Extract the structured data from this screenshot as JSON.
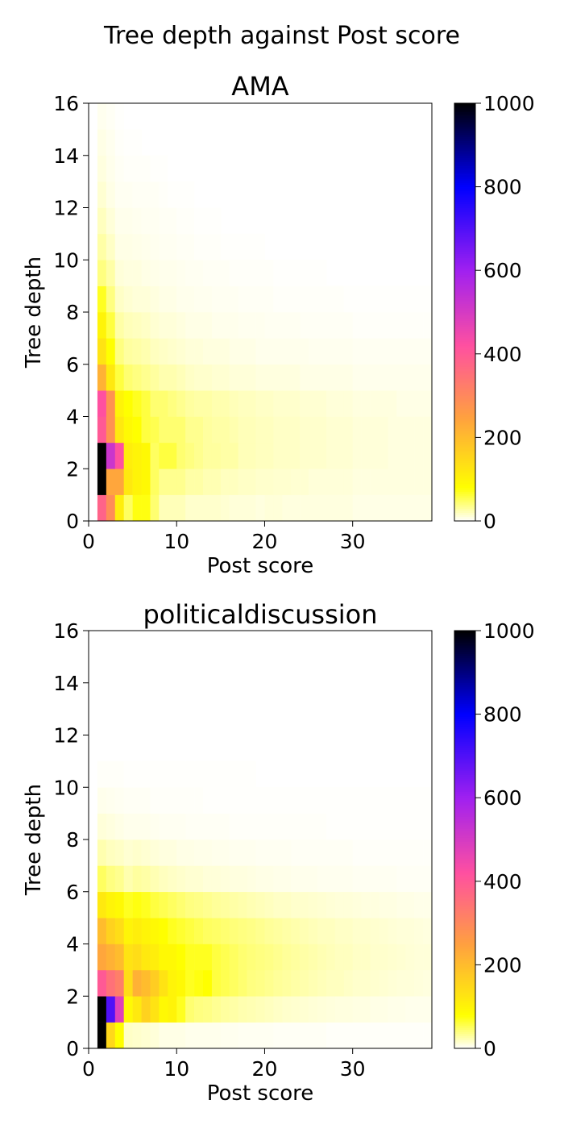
{
  "figure": {
    "suptitle": "Tree depth against Post score"
  },
  "colormap": {
    "stops": [
      "#ffffff",
      "#ffff00",
      "#ffa040",
      "#ff50a0",
      "#a020f0",
      "#0000ff",
      "#000000"
    ],
    "stop_positions": [
      0,
      0.08,
      0.25,
      0.42,
      0.6,
      0.8,
      1
    ]
  },
  "chart_data": [
    {
      "type": "heatmap",
      "title": "AMA",
      "xlabel": "Post score",
      "ylabel": "Tree depth",
      "xlim": [
        0,
        39
      ],
      "ylim": [
        0,
        16
      ],
      "xticks": [
        "0",
        "10",
        "20",
        "30"
      ],
      "yticks": [
        "0",
        "2",
        "4",
        "6",
        "8",
        "10",
        "12",
        "14",
        "16"
      ],
      "colorbar": {
        "min": 0,
        "max": 1000,
        "ticks": [
          "0",
          "200",
          "400",
          "600",
          "800",
          "1000"
        ]
      },
      "col_keys": [
        1,
        2,
        3,
        4,
        5,
        6,
        7,
        8,
        9,
        10,
        11,
        12,
        13,
        14,
        15,
        16,
        17,
        18,
        19,
        20,
        21,
        22,
        23,
        24,
        25,
        26,
        27,
        28,
        29,
        30,
        31,
        32,
        33,
        34,
        35,
        36,
        37,
        38
      ],
      "rows": [
        [
          380,
          290,
          110,
          50,
          75,
          75,
          45,
          22,
          22,
          22,
          16,
          16,
          16,
          16,
          14,
          12,
          12,
          12,
          10,
          12,
          12,
          10,
          10,
          10,
          10,
          10,
          10,
          10,
          10,
          8,
          8,
          8,
          8,
          8,
          8,
          8,
          8,
          8
        ],
        [
          1000,
          240,
          240,
          120,
          100,
          90,
          50,
          35,
          35,
          35,
          28,
          28,
          24,
          24,
          20,
          20,
          18,
          18,
          16,
          16,
          15,
          15,
          14,
          14,
          12,
          12,
          12,
          12,
          12,
          10,
          10,
          10,
          10,
          10,
          10,
          10,
          10,
          10
        ],
        [
          1000,
          520,
          420,
          110,
          100,
          90,
          50,
          60,
          60,
          45,
          40,
          35,
          30,
          30,
          28,
          28,
          22,
          22,
          20,
          20,
          18,
          18,
          18,
          16,
          16,
          16,
          14,
          14,
          14,
          12,
          12,
          12,
          12,
          10,
          10,
          10,
          10,
          10
        ],
        [
          400,
          280,
          120,
          90,
          80,
          60,
          55,
          45,
          45,
          45,
          35,
          35,
          30,
          28,
          28,
          25,
          22,
          22,
          20,
          20,
          18,
          18,
          18,
          16,
          16,
          16,
          14,
          14,
          14,
          12,
          12,
          12,
          12,
          10,
          10,
          10,
          10,
          10
        ],
        [
          420,
          280,
          100,
          80,
          70,
          60,
          45,
          45,
          40,
          35,
          30,
          28,
          28,
          25,
          25,
          22,
          20,
          20,
          18,
          18,
          16,
          16,
          16,
          14,
          14,
          14,
          12,
          12,
          12,
          10,
          10,
          10,
          10,
          10,
          8,
          8,
          8,
          8
        ],
        [
          220,
          120,
          60,
          45,
          40,
          35,
          30,
          25,
          25,
          22,
          18,
          16,
          16,
          14,
          14,
          12,
          12,
          12,
          10,
          10,
          10,
          10,
          10,
          8,
          8,
          8,
          8,
          8,
          8,
          6,
          6,
          6,
          6,
          6,
          6,
          6,
          6,
          6
        ],
        [
          130,
          80,
          40,
          30,
          28,
          25,
          20,
          18,
          16,
          14,
          12,
          12,
          10,
          10,
          10,
          8,
          8,
          8,
          6,
          6,
          6,
          6,
          6,
          6,
          5,
          5,
          5,
          5,
          5,
          4,
          4,
          4,
          4,
          4,
          4,
          4,
          4,
          4
        ],
        [
          100,
          60,
          28,
          22,
          20,
          18,
          14,
          12,
          12,
          10,
          8,
          8,
          8,
          6,
          6,
          6,
          5,
          5,
          5,
          4,
          4,
          4,
          4,
          3,
          3,
          3,
          3,
          3,
          3,
          2,
          2,
          2,
          2,
          2,
          2,
          2,
          2,
          2
        ],
        [
          70,
          40,
          18,
          14,
          12,
          12,
          10,
          8,
          8,
          6,
          6,
          5,
          5,
          4,
          4,
          4,
          3,
          3,
          3,
          3,
          2,
          2,
          2,
          2,
          2,
          2,
          2,
          2,
          1,
          1,
          1,
          1,
          1,
          1,
          1,
          1,
          1,
          1
        ],
        [
          40,
          28,
          12,
          10,
          10,
          8,
          7,
          6,
          6,
          5,
          4,
          4,
          3,
          3,
          3,
          2,
          2,
          2,
          2,
          2,
          1,
          1,
          1,
          1,
          1,
          1,
          0,
          0,
          0,
          0,
          0,
          0,
          0,
          0,
          0,
          0,
          0,
          0
        ],
        [
          28,
          18,
          8,
          8,
          7,
          6,
          5,
          4,
          4,
          3,
          3,
          2,
          2,
          2,
          1,
          1,
          1,
          1,
          1,
          0,
          0,
          0,
          0,
          0,
          0,
          0,
          0,
          0,
          0,
          0,
          0,
          0,
          0,
          0,
          0,
          0,
          0,
          0
        ],
        [
          20,
          12,
          6,
          6,
          5,
          4,
          4,
          3,
          3,
          2,
          2,
          1,
          1,
          1,
          0,
          0,
          0,
          0,
          0,
          0,
          0,
          0,
          0,
          0,
          0,
          0,
          0,
          0,
          0,
          0,
          0,
          0,
          0,
          0,
          0,
          0,
          0,
          0
        ],
        [
          14,
          8,
          4,
          4,
          3,
          3,
          3,
          2,
          1,
          1,
          1,
          0,
          0,
          0,
          0,
          0,
          0,
          0,
          0,
          0,
          0,
          0,
          0,
          0,
          0,
          0,
          0,
          0,
          0,
          0,
          0,
          0,
          0,
          0,
          0,
          0,
          0,
          0
        ],
        [
          10,
          6,
          3,
          2,
          2,
          2,
          1,
          1,
          0,
          0,
          0,
          0,
          0,
          0,
          0,
          0,
          0,
          0,
          0,
          0,
          0,
          0,
          0,
          0,
          0,
          0,
          0,
          0,
          0,
          0,
          0,
          0,
          0,
          0,
          0,
          0,
          0,
          0
        ],
        [
          8,
          5,
          2,
          1,
          1,
          0,
          0,
          0,
          0,
          0,
          0,
          0,
          0,
          0,
          0,
          0,
          0,
          0,
          0,
          0,
          0,
          0,
          0,
          0,
          0,
          0,
          0,
          0,
          0,
          0,
          0,
          0,
          0,
          0,
          0,
          0,
          0,
          0
        ],
        [
          5,
          3,
          1,
          0,
          0,
          0,
          0,
          0,
          0,
          0,
          0,
          0,
          0,
          0,
          0,
          0,
          0,
          0,
          0,
          0,
          0,
          0,
          0,
          0,
          0,
          0,
          0,
          0,
          0,
          0,
          0,
          0,
          0,
          0,
          0,
          0,
          0,
          0
        ]
      ]
    },
    {
      "type": "heatmap",
      "title": "politicaldiscussion",
      "xlabel": "Post score",
      "ylabel": "Tree depth",
      "xlim": [
        0,
        39
      ],
      "ylim": [
        0,
        16
      ],
      "xticks": [
        "0",
        "10",
        "20",
        "30"
      ],
      "yticks": [
        "0",
        "2",
        "4",
        "6",
        "8",
        "10",
        "12",
        "14",
        "16"
      ],
      "colorbar": {
        "min": 0,
        "max": 1000,
        "ticks": [
          "0",
          "200",
          "400",
          "600",
          "800",
          "1000"
        ]
      },
      "col_keys": [
        1,
        2,
        3,
        4,
        5,
        6,
        7,
        8,
        9,
        10,
        11,
        12,
        13,
        14,
        15,
        16,
        17,
        18,
        19,
        20,
        21,
        22,
        23,
        24,
        25,
        26,
        27,
        28,
        29,
        30,
        31,
        32,
        33,
        34,
        35,
        36,
        37,
        38
      ],
      "rows": [
        [
          1000,
          150,
          80,
          18,
          16,
          14,
          12,
          8,
          8,
          8,
          6,
          6,
          6,
          6,
          5,
          5,
          4,
          4,
          4,
          4,
          3,
          3,
          3,
          3,
          3,
          3,
          2,
          2,
          2,
          2,
          2,
          2,
          2,
          2,
          2,
          2,
          2,
          2
        ],
        [
          1000,
          700,
          480,
          90,
          120,
          160,
          130,
          90,
          100,
          70,
          45,
          40,
          38,
          34,
          30,
          28,
          25,
          24,
          22,
          20,
          18,
          16,
          15,
          14,
          13,
          12,
          11,
          10,
          10,
          9,
          9,
          8,
          8,
          7,
          7,
          6,
          6,
          6
        ],
        [
          400,
          350,
          320,
          140,
          220,
          200,
          170,
          130,
          100,
          90,
          70,
          75,
          80,
          60,
          55,
          50,
          45,
          40,
          38,
          35,
          32,
          30,
          28,
          26,
          24,
          22,
          20,
          20,
          18,
          16,
          16,
          15,
          14,
          13,
          12,
          12,
          11,
          10
        ],
        [
          240,
          220,
          200,
          130,
          140,
          120,
          110,
          90,
          90,
          80,
          70,
          70,
          70,
          60,
          55,
          50,
          45,
          42,
          40,
          38,
          35,
          32,
          30,
          28,
          26,
          24,
          22,
          20,
          20,
          18,
          18,
          16,
          16,
          15,
          14,
          13,
          12,
          12
        ],
        [
          200,
          160,
          140,
          100,
          110,
          100,
          90,
          80,
          70,
          65,
          60,
          55,
          50,
          48,
          45,
          42,
          40,
          38,
          35,
          32,
          30,
          28,
          26,
          24,
          22,
          20,
          20,
          18,
          18,
          16,
          16,
          15,
          14,
          13,
          12,
          12,
          11,
          10
        ],
        [
          120,
          100,
          90,
          70,
          75,
          70,
          60,
          55,
          50,
          45,
          40,
          38,
          35,
          32,
          30,
          28,
          26,
          24,
          22,
          20,
          18,
          18,
          16,
          16,
          15,
          14,
          13,
          12,
          12,
          11,
          10,
          10,
          9,
          9,
          8,
          8,
          7,
          7
        ],
        [
          50,
          40,
          35,
          25,
          30,
          28,
          24,
          20,
          18,
          16,
          14,
          14,
          12,
          12,
          11,
          10,
          10,
          9,
          8,
          8,
          7,
          7,
          6,
          6,
          6,
          5,
          5,
          5,
          5,
          4,
          4,
          4,
          4,
          4,
          3,
          3,
          3,
          3
        ],
        [
          25,
          20,
          18,
          14,
          16,
          14,
          12,
          10,
          10,
          8,
          8,
          7,
          7,
          6,
          6,
          5,
          5,
          5,
          4,
          4,
          4,
          4,
          3,
          3,
          3,
          3,
          3,
          3,
          3,
          2,
          2,
          2,
          2,
          2,
          2,
          2,
          2,
          2
        ],
        [
          12,
          10,
          8,
          6,
          6,
          6,
          5,
          4,
          4,
          4,
          3,
          3,
          3,
          3,
          3,
          2,
          2,
          2,
          2,
          2,
          2,
          2,
          2,
          2,
          2,
          2,
          1,
          1,
          1,
          1,
          1,
          1,
          1,
          1,
          1,
          1,
          1,
          1
        ],
        [
          6,
          5,
          4,
          3,
          3,
          3,
          2,
          2,
          2,
          2,
          2,
          2,
          1,
          1,
          1,
          1,
          1,
          1,
          1,
          1,
          1,
          1,
          1,
          1,
          1,
          1,
          1,
          1,
          1,
          1,
          1,
          1,
          1,
          1,
          1,
          1,
          1,
          1
        ],
        [
          2,
          2,
          2,
          1,
          1,
          1,
          1,
          1,
          1,
          1,
          1,
          1,
          1,
          1,
          1,
          1,
          1,
          1,
          0,
          0,
          0,
          0,
          0,
          0,
          0,
          0,
          0,
          0,
          0,
          0,
          0,
          0,
          0,
          0,
          0,
          0,
          0,
          0
        ],
        [
          0,
          0,
          0,
          0,
          0,
          0,
          0,
          0,
          0,
          0,
          0,
          0,
          0,
          0,
          0,
          0,
          0,
          0,
          0,
          0,
          0,
          0,
          0,
          0,
          0,
          0,
          0,
          0,
          0,
          0,
          0,
          0,
          0,
          0,
          0,
          0,
          0,
          0
        ],
        [
          0,
          0,
          0,
          0,
          0,
          0,
          0,
          0,
          0,
          0,
          0,
          0,
          0,
          0,
          0,
          0,
          0,
          0,
          0,
          0,
          0,
          0,
          0,
          0,
          0,
          0,
          0,
          0,
          0,
          0,
          0,
          0,
          0,
          0,
          0,
          0,
          0,
          0
        ],
        [
          0,
          0,
          0,
          0,
          0,
          0,
          0,
          0,
          0,
          0,
          0,
          0,
          0,
          0,
          0,
          0,
          0,
          0,
          0,
          0,
          0,
          0,
          0,
          0,
          0,
          0,
          0,
          0,
          0,
          0,
          0,
          0,
          0,
          0,
          0,
          0,
          0,
          0
        ],
        [
          0,
          0,
          0,
          0,
          0,
          0,
          0,
          0,
          0,
          0,
          0,
          0,
          0,
          0,
          0,
          0,
          0,
          0,
          0,
          0,
          0,
          0,
          0,
          0,
          0,
          0,
          0,
          0,
          0,
          0,
          0,
          0,
          0,
          0,
          0,
          0,
          0,
          0
        ],
        [
          0,
          0,
          0,
          0,
          0,
          0,
          0,
          0,
          0,
          0,
          0,
          0,
          0,
          0,
          0,
          0,
          0,
          0,
          0,
          0,
          0,
          0,
          0,
          0,
          0,
          0,
          0,
          0,
          0,
          0,
          0,
          0,
          0,
          0,
          0,
          0,
          0,
          0
        ]
      ]
    }
  ]
}
